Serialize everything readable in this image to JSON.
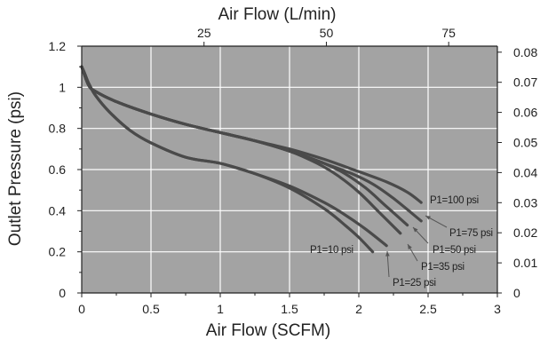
{
  "chart_data": {
    "type": "line",
    "xlabel": "Air Flow (SCFM)",
    "ylabel": "Outlet Pressure (psi)",
    "x2label": "Air Flow (L/min)",
    "xlim": [
      0,
      3
    ],
    "ylim": [
      0,
      1.2
    ],
    "x2lim_lpm": [
      0,
      84.95
    ],
    "y2lim": [
      0,
      0.082
    ],
    "x_ticks": [
      "0",
      "0.5",
      "1",
      "1.5",
      "2",
      "2.5",
      "3"
    ],
    "y_ticks": [
      "0",
      "0.2",
      "0.4",
      "0.6",
      "0.8",
      "1",
      "1.2"
    ],
    "x2_ticks": [
      "25",
      "50",
      "75"
    ],
    "y2_ticks": [
      "0",
      "0.01",
      "0.02",
      "0.03",
      "0.04",
      "0.05",
      "0.06",
      "0.07",
      "0.08"
    ],
    "grid": true,
    "background": "#a3a3a3",
    "line_color": "#4a4a4a",
    "series": [
      {
        "name": "P1=10 psi",
        "x": [
          0,
          0.02,
          0.05,
          0.1,
          0.2,
          0.35,
          0.5,
          0.75,
          1.0,
          1.25,
          1.5,
          1.75,
          1.9,
          2.0,
          2.1
        ],
        "y": [
          1.1,
          1.07,
          1.02,
          0.96,
          0.88,
          0.79,
          0.73,
          0.66,
          0.63,
          0.58,
          0.51,
          0.41,
          0.33,
          0.27,
          0.2
        ]
      },
      {
        "name": "P1=25 psi",
        "x": [
          0,
          0.02,
          0.05,
          0.1,
          0.2,
          0.35,
          0.5,
          0.75,
          1.0,
          1.25,
          1.5,
          1.75,
          1.9,
          2.05,
          2.2
        ],
        "y": [
          1.1,
          1.07,
          1.02,
          0.96,
          0.88,
          0.79,
          0.73,
          0.66,
          0.63,
          0.58,
          0.52,
          0.44,
          0.38,
          0.31,
          0.23
        ]
      },
      {
        "name": "P1=35 psi",
        "x": [
          0,
          0.05,
          0.1,
          0.25,
          0.5,
          0.75,
          1.0,
          1.25,
          1.5,
          1.7,
          1.85,
          2.0,
          2.15,
          2.3
        ],
        "y": [
          1.1,
          1.01,
          0.98,
          0.93,
          0.87,
          0.82,
          0.78,
          0.74,
          0.69,
          0.63,
          0.57,
          0.49,
          0.39,
          0.29
        ]
      },
      {
        "name": "P1=50 psi",
        "x": [
          0,
          0.05,
          0.1,
          0.25,
          0.5,
          0.75,
          1.0,
          1.25,
          1.5,
          1.75,
          1.9,
          2.05,
          2.2,
          2.35
        ],
        "y": [
          1.1,
          1.01,
          0.98,
          0.93,
          0.87,
          0.82,
          0.78,
          0.74,
          0.69,
          0.63,
          0.58,
          0.51,
          0.42,
          0.33
        ]
      },
      {
        "name": "P1=75 psi",
        "x": [
          0,
          0.05,
          0.1,
          0.25,
          0.5,
          0.75,
          1.0,
          1.25,
          1.5,
          1.75,
          1.95,
          2.1,
          2.25,
          2.45
        ],
        "y": [
          1.1,
          1.01,
          0.98,
          0.93,
          0.87,
          0.82,
          0.78,
          0.74,
          0.69,
          0.63,
          0.58,
          0.53,
          0.46,
          0.35
        ]
      },
      {
        "name": "P1=100 psi",
        "x": [
          0,
          0.05,
          0.1,
          0.25,
          0.5,
          0.75,
          1.0,
          1.25,
          1.5,
          1.75,
          2.0,
          2.2,
          2.35,
          2.45
        ],
        "y": [
          1.1,
          1.01,
          0.98,
          0.93,
          0.87,
          0.82,
          0.78,
          0.74,
          0.7,
          0.65,
          0.59,
          0.54,
          0.49,
          0.44
        ]
      }
    ]
  }
}
